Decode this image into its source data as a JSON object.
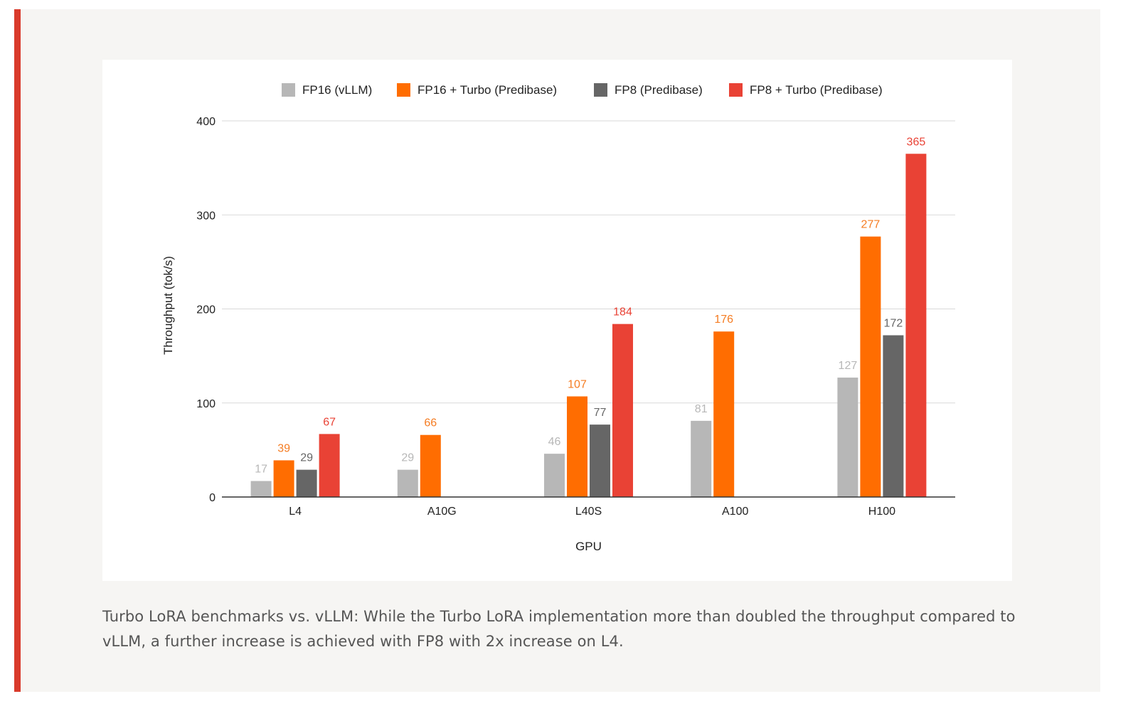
{
  "colors": {
    "accent_bar": "#d93a2b",
    "fp16": "#b7b7b7",
    "fp16_turbo": "#ff6d01",
    "fp8": "#666666",
    "fp8_turbo": "#e94235",
    "fp16_label": "#b7b7b7",
    "fp16_turbo_label": "#f57c22",
    "fp8_label": "#666666",
    "fp8_turbo_label": "#e94235"
  },
  "chart_data": {
    "type": "bar",
    "title": "",
    "xlabel": "GPU",
    "ylabel": "Throughput (tok/s)",
    "ylim": [
      0,
      400
    ],
    "yticks": [
      "0",
      "100",
      "200",
      "300",
      "400"
    ],
    "ytick_values": [
      0,
      100,
      200,
      300,
      400
    ],
    "grid": true,
    "legend_position": "top",
    "categories": [
      "L4",
      "A10G",
      "L40S",
      "A100",
      "H100"
    ],
    "series": [
      {
        "name": "FP16 (vLLM)",
        "color_key": "fp16",
        "values": [
          17,
          29,
          46,
          81,
          127
        ],
        "labels": [
          "17",
          "29",
          "46",
          "81",
          "127"
        ]
      },
      {
        "name": "FP16 + Turbo (Predibase)",
        "color_key": "fp16_turbo",
        "values": [
          39,
          66,
          107,
          176,
          277
        ],
        "labels": [
          "39",
          "66",
          "107",
          "176",
          "277"
        ]
      },
      {
        "name": "FP8 (Predibase)",
        "color_key": "fp8",
        "values": [
          29,
          null,
          77,
          null,
          172
        ],
        "labels": [
          "29",
          "",
          "77",
          "",
          "172"
        ]
      },
      {
        "name": "FP8 + Turbo (Predibase)",
        "color_key": "fp8_turbo",
        "values": [
          67,
          null,
          184,
          null,
          365
        ],
        "labels": [
          "67",
          "",
          "184",
          "",
          "365"
        ]
      }
    ]
  },
  "caption": "Turbo LoRA benchmarks vs. vLLM: While the Turbo LoRA implementation more than doubled the throughput compared to vLLM, a further increase is achieved with FP8 with 2x increase on L4."
}
